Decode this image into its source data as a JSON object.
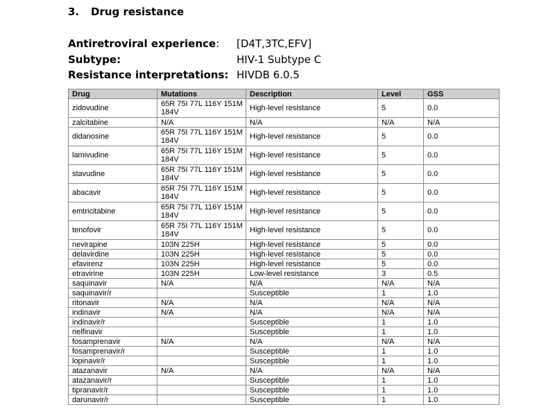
{
  "section": {
    "number": "3.",
    "title": "Drug resistance"
  },
  "info": [
    {
      "label": "Antiretroviral experience",
      "colon": ":",
      "value": "[D4T,3TC,EFV]"
    },
    {
      "label": "Subtype:",
      "colon": "",
      "value": "HIV-1 Subtype C"
    },
    {
      "label": "Resistance interpretations:",
      "colon": "",
      "value": "HIVDB 6.0.5"
    }
  ],
  "table": {
    "headers": [
      "Drug",
      "Mutations",
      "Description",
      "Level",
      "GSS"
    ],
    "rows": [
      {
        "drug": "zidovudine",
        "mutations": "65R 75I 77L 116Y 151M 184V",
        "description": "High-level resistance",
        "level": "5",
        "gss": "0.0"
      },
      {
        "drug": "zalcitabine",
        "mutations": "N/A",
        "description": "N/A",
        "level": "N/A",
        "gss": "N/A"
      },
      {
        "drug": "didanosine",
        "mutations": "65R 75I 77L 116Y 151M 184V",
        "description": "High-level resistance",
        "level": "5",
        "gss": "0.0"
      },
      {
        "drug": "lamivudine",
        "mutations": "65R 75I 77L 116Y 151M 184V",
        "description": "High-level resistance",
        "level": "5",
        "gss": "0.0"
      },
      {
        "drug": "stavudine",
        "mutations": "65R 75I 77L 116Y 151M 184V",
        "description": "High-level resistance",
        "level": "5",
        "gss": "0.0"
      },
      {
        "drug": "abacavir",
        "mutations": "65R 75I 77L 116Y 151M 184V",
        "description": "High-level resistance",
        "level": "5",
        "gss": "0.0"
      },
      {
        "drug": "emtricitabine",
        "mutations": "65R 75I 77L 116Y 151M 184V",
        "description": "High-level resistance",
        "level": "5",
        "gss": "0.0"
      },
      {
        "drug": "tenofovir",
        "mutations": "65R 75I 77L 116Y 151M 184V",
        "description": "High-level resistance",
        "level": "5",
        "gss": "0.0"
      },
      {
        "drug": "nevirapine",
        "mutations": "103N 225H",
        "description": "High-level resistance",
        "level": "5",
        "gss": "0.0"
      },
      {
        "drug": "delavirdine",
        "mutations": "103N 225H",
        "description": "High-level resistance",
        "level": "5",
        "gss": "0.0"
      },
      {
        "drug": "efavirenz",
        "mutations": "103N 225H",
        "description": "High-level resistance",
        "level": "5",
        "gss": "0.0"
      },
      {
        "drug": "etravirine",
        "mutations": "103N 225H",
        "description": "Low-level resistance",
        "level": "3",
        "gss": "0.5"
      },
      {
        "drug": "saquinavir",
        "mutations": "N/A",
        "description": "N/A",
        "level": "N/A",
        "gss": "N/A"
      },
      {
        "drug": "saquinavir/r",
        "mutations": "",
        "description": "Susceptible",
        "level": "1",
        "gss": "1.0"
      },
      {
        "drug": "ritonavir",
        "mutations": "N/A",
        "description": "N/A",
        "level": "N/A",
        "gss": "N/A"
      },
      {
        "drug": "indinavir",
        "mutations": "N/A",
        "description": "N/A",
        "level": "N/A",
        "gss": "N/A"
      },
      {
        "drug": "indinavir/r",
        "mutations": "",
        "description": "Susceptible",
        "level": "1",
        "gss": "1.0"
      },
      {
        "drug": "nelfinavir",
        "mutations": "",
        "description": "Susceptible",
        "level": "1",
        "gss": "1.0"
      },
      {
        "drug": "fosamprenavir",
        "mutations": "N/A",
        "description": "N/A",
        "level": "N/A",
        "gss": "N/A"
      },
      {
        "drug": "fosamprenavir/r",
        "mutations": "",
        "description": "Susceptible",
        "level": "1",
        "gss": "1.0"
      },
      {
        "drug": "lopinavir/r",
        "mutations": "",
        "description": "Susceptible",
        "level": "1",
        "gss": "1.0"
      },
      {
        "drug": "atazanavir",
        "mutations": "N/A",
        "description": "N/A",
        "level": "N/A",
        "gss": "N/A"
      },
      {
        "drug": "atazanavir/r",
        "mutations": "",
        "description": "Susceptible",
        "level": "1",
        "gss": "1.0"
      },
      {
        "drug": "tipranavir/r",
        "mutations": "",
        "description": "Susceptible",
        "level": "1",
        "gss": "1.0"
      },
      {
        "drug": "darunavir/r",
        "mutations": "",
        "description": "Susceptible",
        "level": "1",
        "gss": "1.0"
      }
    ]
  }
}
